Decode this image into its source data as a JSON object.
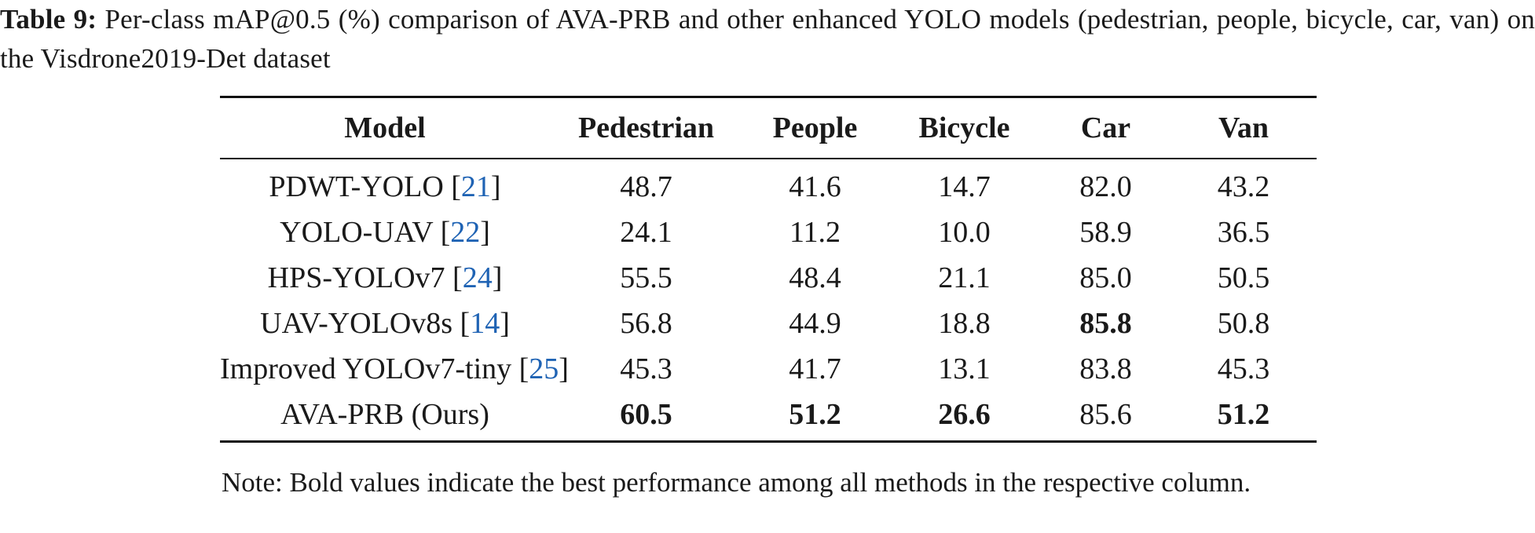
{
  "caption": {
    "label": "Table 9:",
    "text": "Per-class mAP@0.5 (%) comparison of AVA-PRB and other enhanced YOLO models (pedestrian, people, bicycle, car, van) on the Visdrone2019-Det dataset"
  },
  "table": {
    "headers": [
      "Model",
      "Pedestrian",
      "People",
      "Bicycle",
      "Car",
      "Van"
    ],
    "rows": [
      {
        "model": "PDWT-YOLO",
        "ref": "21",
        "values": [
          "48.7",
          "41.6",
          "14.7",
          "82.0",
          "43.2"
        ],
        "bold": [
          false,
          false,
          false,
          false,
          false
        ]
      },
      {
        "model": "YOLO-UAV",
        "ref": "22",
        "values": [
          "24.1",
          "11.2",
          "10.0",
          "58.9",
          "36.5"
        ],
        "bold": [
          false,
          false,
          false,
          false,
          false
        ]
      },
      {
        "model": "HPS-YOLOv7",
        "ref": "24",
        "values": [
          "55.5",
          "48.4",
          "21.1",
          "85.0",
          "50.5"
        ],
        "bold": [
          false,
          false,
          false,
          false,
          false
        ]
      },
      {
        "model": "UAV-YOLOv8s",
        "ref": "14",
        "values": [
          "56.8",
          "44.9",
          "18.8",
          "85.8",
          "50.8"
        ],
        "bold": [
          false,
          false,
          false,
          true,
          false
        ]
      },
      {
        "model": "Improved YOLOv7-tiny",
        "ref": "25",
        "values": [
          "45.3",
          "41.7",
          "13.1",
          "83.8",
          "45.3"
        ],
        "bold": [
          false,
          false,
          false,
          false,
          false
        ]
      },
      {
        "model": "AVA-PRB (Ours)",
        "ref": "",
        "values": [
          "60.5",
          "51.2",
          "26.6",
          "85.6",
          "51.2"
        ],
        "bold": [
          true,
          true,
          true,
          false,
          true
        ]
      }
    ]
  },
  "note": "Note: Bold values indicate the best performance among all methods in the respective column.",
  "colors": {
    "text": "#1a1a1a",
    "citation": "#1f63b4"
  }
}
